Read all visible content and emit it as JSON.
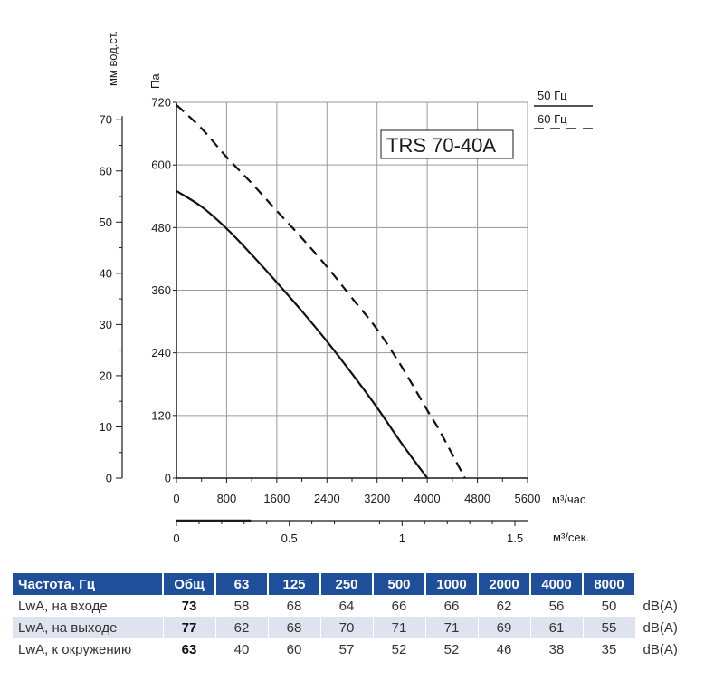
{
  "chart_data": {
    "type": "line",
    "model_label": "TRS 70-40A",
    "axes": {
      "x_primary": {
        "unit": "м³/час",
        "ticks": [
          0,
          800,
          1600,
          2400,
          3200,
          4000,
          4800,
          5600
        ],
        "range": [
          0,
          5600
        ]
      },
      "x_secondary": {
        "unit": "м³/сек.",
        "ticks": [
          "0",
          "0.5",
          "1",
          "1.5"
        ],
        "range": [
          0,
          1.556
        ]
      },
      "y_primary": {
        "unit": "Па",
        "ticks": [
          0,
          120,
          240,
          360,
          480,
          600,
          720
        ],
        "range": [
          0,
          720
        ]
      },
      "y_secondary": {
        "unit": "мм вод.ст.",
        "ticks": [
          0,
          10,
          20,
          30,
          40,
          50,
          60,
          70
        ],
        "range": [
          0,
          73.4
        ]
      }
    },
    "grid": true,
    "legend": {
      "placement": "top-right",
      "entries": [
        "50 Гц",
        "60 Гц"
      ]
    },
    "series": [
      {
        "name": "50 Гц",
        "style": "solid",
        "x": [
          0,
          400,
          800,
          1200,
          1600,
          2000,
          2400,
          2800,
          3200,
          3600,
          4000
        ],
        "y": [
          550,
          520,
          478,
          428,
          375,
          320,
          262,
          200,
          135,
          65,
          0
        ]
      },
      {
        "name": "60 Гц",
        "style": "dashed",
        "x": [
          0,
          400,
          800,
          1200,
          1600,
          2000,
          2400,
          2800,
          3200,
          3600,
          4000,
          4200,
          4600
        ],
        "y": [
          715,
          670,
          615,
          565,
          512,
          460,
          405,
          345,
          285,
          212,
          130,
          90,
          0
        ]
      }
    ]
  },
  "table": {
    "header": [
      "Частота, Гц",
      "Общ",
      "63",
      "125",
      "250",
      "500",
      "1000",
      "2000",
      "4000",
      "8000"
    ],
    "rows": [
      {
        "label": "LwA, на входе",
        "total": "73",
        "values": [
          "58",
          "68",
          "64",
          "66",
          "66",
          "62",
          "56",
          "50"
        ],
        "unit": "dB(A)"
      },
      {
        "label": "LwA, на выходе",
        "total": "77",
        "values": [
          "62",
          "68",
          "70",
          "71",
          "71",
          "69",
          "61",
          "55"
        ],
        "unit": "dB(A)"
      },
      {
        "label": "LwA, к окружению",
        "total": "63",
        "values": [
          "40",
          "60",
          "57",
          "52",
          "52",
          "46",
          "38",
          "35"
        ],
        "unit": "dB(A)"
      }
    ]
  }
}
